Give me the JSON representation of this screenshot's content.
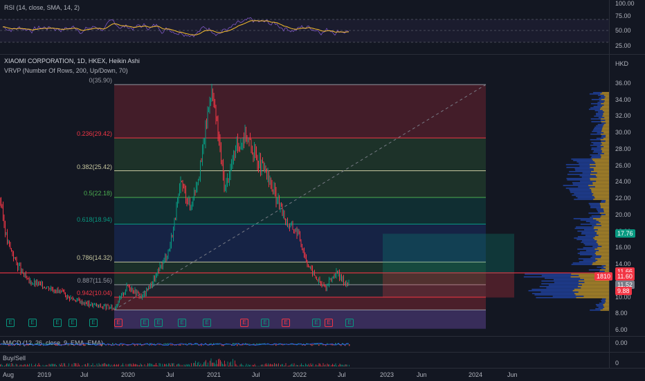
{
  "rsi": {
    "title": "RSI (14, close, SMA, 14, 2)",
    "axis_ticks": [
      "100.00",
      "75.00",
      "50.00",
      "25.00"
    ]
  },
  "main": {
    "title": "XIAOMI CORPORATION, 1D, HKEX, Heikin Ashi",
    "vrvp": "VRVP (Number Of Rows, 200, Up/Down, 70)",
    "currency": "HKD",
    "axis_ticks": [
      "36.00",
      "34.00",
      "32.00",
      "30.00",
      "28.00",
      "26.00",
      "24.00",
      "22.00",
      "20.00",
      "18.00",
      "16.00",
      "14.00",
      "12.00",
      "10.00",
      "8.00",
      "6.00"
    ],
    "fib_levels": [
      {
        "label": "0(35.90)",
        "color": "#9598a1"
      },
      {
        "label": "0.236(29.42)",
        "color": "#f23645"
      },
      {
        "label": "0.382(25.42)",
        "color": "#c8c8a0"
      },
      {
        "label": "0.5(22.18)",
        "color": "#4caf50"
      },
      {
        "label": "0.618(18.94)",
        "color": "#089981"
      },
      {
        "label": "0.786(14.32)",
        "color": "#c8c8a0"
      },
      {
        "label": "0.887(11.56)",
        "color": "#9598a1"
      },
      {
        "label": "0.942(10.04)",
        "color": "#f23645"
      }
    ],
    "price_tags": [
      {
        "text": "17.76",
        "color": "#089981"
      },
      {
        "text": "11.66",
        "color": "#f23645"
      },
      {
        "text": "1810",
        "color": "#f23645"
      },
      {
        "text": "11.60",
        "color": "#f23645"
      },
      {
        "text": "11.52",
        "color": "#787b86"
      },
      {
        "text": "9.88",
        "color": "#f23645"
      }
    ],
    "earnings_markers": [
      "E",
      "E",
      "E",
      "E",
      "E",
      "E",
      "E",
      "E",
      "E",
      "E",
      "E",
      "E",
      "E",
      "E",
      "E",
      "E"
    ]
  },
  "macd": {
    "title": "MACD (12, 26, close, 9, EMA, EMA)",
    "axis_ticks": [
      "0.00"
    ]
  },
  "buysell": {
    "title": "Buy/Sell",
    "axis_ticks": [
      "0"
    ]
  },
  "time_axis": [
    "Aug",
    "2019",
    "Jul",
    "2020",
    "Jul",
    "2021",
    "Jul",
    "2022",
    "Jul",
    "2023",
    "Jun",
    "2024",
    "Jun"
  ],
  "colors": {
    "up": "#089981",
    "down": "#f23645",
    "accent": "#2962ff",
    "rsi_line": "#7e57c2",
    "rsi_ma": "#fbc02d"
  }
}
